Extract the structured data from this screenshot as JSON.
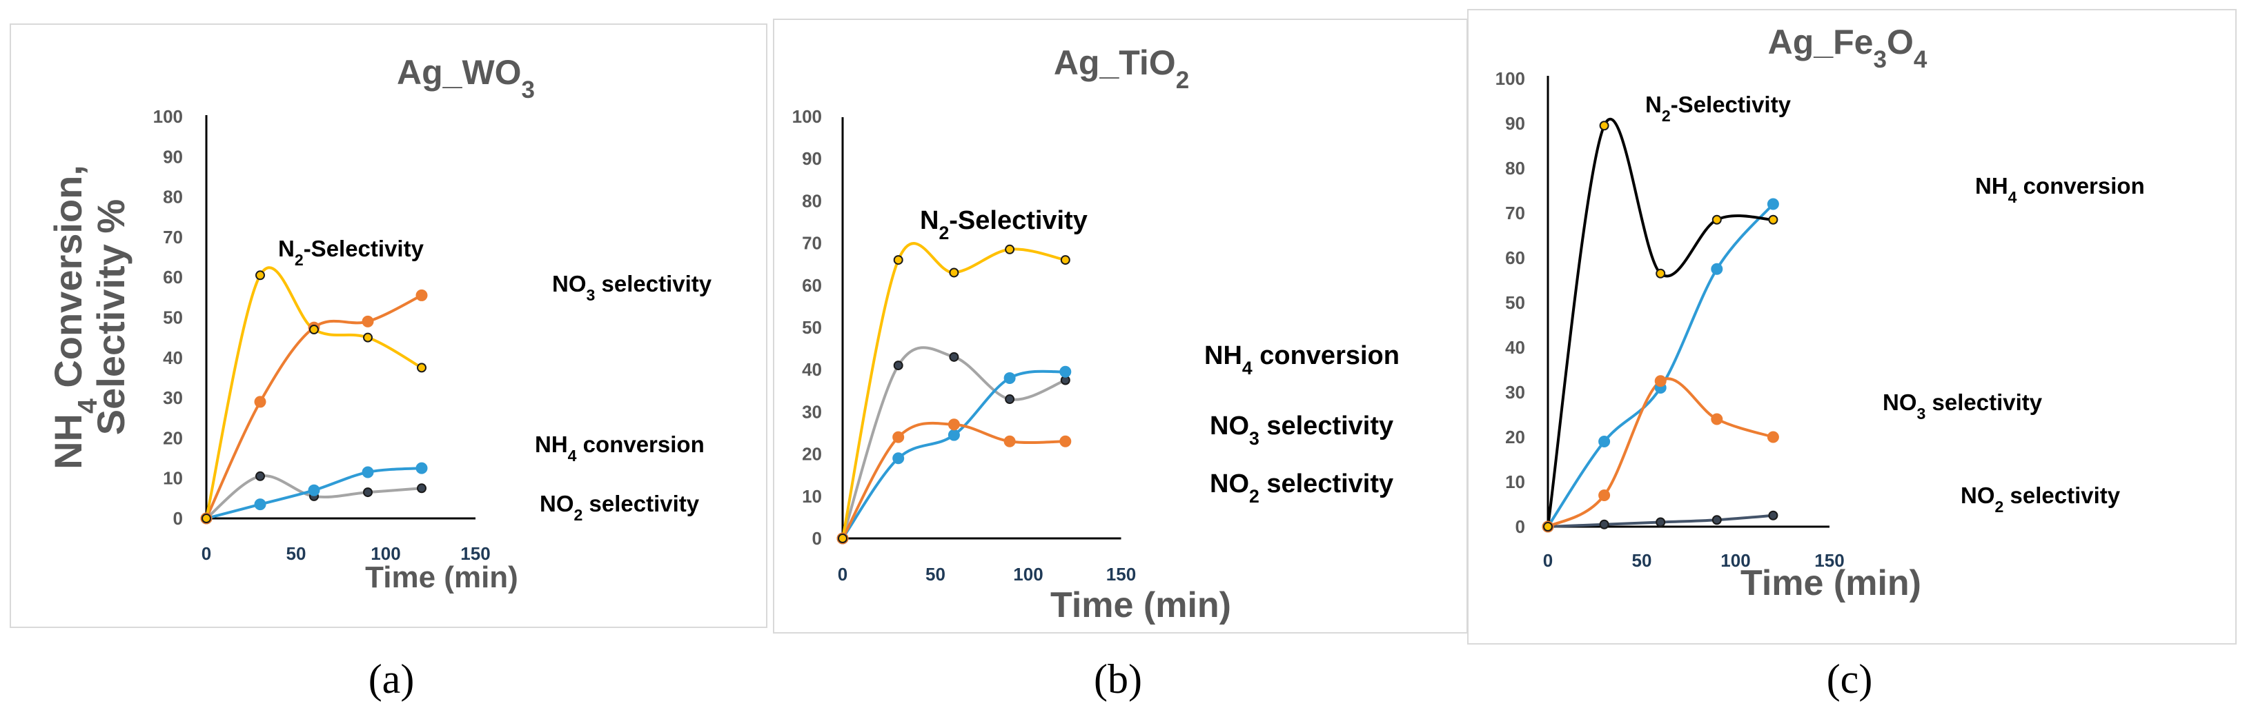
{
  "colors": {
    "n2": "#ffc000",
    "no3": "#ed7d31",
    "nh4": "#2e9bd6",
    "no2": "#a5a5a5",
    "n2_fe": "#000000",
    "no2_fe": "#44546a",
    "no2_marker": "#3a4452"
  },
  "chart_data": [
    {
      "type": "line",
      "title": "Ag_WO3",
      "title_parts": {
        "base": "Ag_WO",
        "sub": "3"
      },
      "panel_label": "(a)",
      "xlabel": "Time  (min)",
      "ylabel": "NH4 Conversion, Selectivity %",
      "ylabel_parts": {
        "line1_base": "NH",
        "line1_sub": "4",
        "line1_rest": " Conversion,",
        "line2": "Selectivity %"
      },
      "xlim": [
        0,
        150
      ],
      "ylim": [
        0,
        100
      ],
      "xticks": [
        0,
        50,
        100,
        150
      ],
      "yticks": [
        0,
        10,
        20,
        30,
        40,
        50,
        60,
        70,
        80,
        90,
        100
      ],
      "series": [
        {
          "key": "n2",
          "name": "N2-Selectivity",
          "label_parts": {
            "base": "N",
            "sub": "2",
            "rest": "-Selectivity"
          },
          "x": [
            0,
            30,
            60,
            90,
            120
          ],
          "values": [
            0,
            60.5,
            47,
            45,
            37.5
          ]
        },
        {
          "key": "no3",
          "name": "NO3 selectivity",
          "label_parts": {
            "base": "NO",
            "sub": "3",
            "rest": " selectivity"
          },
          "x": [
            0,
            30,
            60,
            90,
            120
          ],
          "values": [
            0,
            29,
            47.5,
            49,
            55.5
          ]
        },
        {
          "key": "nh4",
          "name": "NH4 conversion",
          "label_parts": {
            "base": "NH",
            "sub": "4",
            "rest": " conversion"
          },
          "x": [
            0,
            30,
            60,
            90,
            120
          ],
          "values": [
            0,
            3.5,
            7,
            11.5,
            12.5
          ]
        },
        {
          "key": "no2",
          "name": "NO2 selectivity",
          "label_parts": {
            "base": "NO",
            "sub": "2",
            "rest": " selectivity"
          },
          "x": [
            0,
            30,
            60,
            90,
            120
          ],
          "values": [
            0,
            10.5,
            5.5,
            6.5,
            7.5
          ]
        }
      ]
    },
    {
      "type": "line",
      "title": "Ag_TiO2",
      "title_parts": {
        "base": "Ag_TiO",
        "sub": "2"
      },
      "panel_label": "(b)",
      "xlabel": "Time  (min)",
      "xlim": [
        0,
        150
      ],
      "ylim": [
        0,
        100
      ],
      "xticks": [
        0,
        50,
        100,
        150
      ],
      "yticks": [
        0,
        10,
        20,
        30,
        40,
        50,
        60,
        70,
        80,
        90,
        100
      ],
      "series": [
        {
          "key": "n2",
          "name": "N2-Selectivity",
          "label_parts": {
            "base": "N",
            "sub": "2",
            "rest": "-Selectivity"
          },
          "x": [
            0,
            30,
            60,
            90,
            120
          ],
          "values": [
            0,
            66,
            63,
            68.5,
            66
          ]
        },
        {
          "key": "no3",
          "name": "NO3 selectivity",
          "label_parts": {
            "base": "NO",
            "sub": "3",
            "rest": " selectivity"
          },
          "x": [
            0,
            30,
            60,
            90,
            120
          ],
          "values": [
            0,
            24,
            27,
            23,
            23
          ]
        },
        {
          "key": "nh4",
          "name": "NH4 conversion",
          "label_parts": {
            "base": "NH",
            "sub": "4",
            "rest": " conversion"
          },
          "x": [
            0,
            30,
            60,
            90,
            120
          ],
          "values": [
            0,
            19,
            24.5,
            38,
            39.5
          ]
        },
        {
          "key": "no2",
          "name": "NO2 selectivity",
          "label_parts": {
            "base": "NO",
            "sub": "2",
            "rest": " selectivity"
          },
          "x": [
            0,
            30,
            60,
            90,
            120
          ],
          "values": [
            0,
            41,
            43,
            33,
            37.5
          ]
        }
      ]
    },
    {
      "type": "line",
      "title": "Ag_Fe3O4",
      "title_parts": {
        "base": "Ag_Fe",
        "sub": "3",
        "mid": "O",
        "sub2": "4"
      },
      "panel_label": "(c)",
      "xlabel": "Time  (min)",
      "xlim": [
        0,
        150
      ],
      "ylim": [
        0,
        100
      ],
      "xticks": [
        0,
        50,
        100,
        150
      ],
      "yticks": [
        0,
        10,
        20,
        30,
        40,
        50,
        60,
        70,
        80,
        90,
        100
      ],
      "series": [
        {
          "key": "n2",
          "name": "N2-Selectivity",
          "label_parts": {
            "base": "N",
            "sub": "2",
            "rest": "-Selectivity"
          },
          "x": [
            0,
            30,
            60,
            90,
            120
          ],
          "values": [
            0,
            89.5,
            56.5,
            68.5,
            68.5
          ]
        },
        {
          "key": "nh4",
          "name": "NH4 conversion",
          "label_parts": {
            "base": "NH",
            "sub": "4",
            "rest": " conversion"
          },
          "x": [
            0,
            30,
            60,
            90,
            120
          ],
          "values": [
            0,
            19,
            31,
            57.5,
            72
          ]
        },
        {
          "key": "no3",
          "name": "NO3 selectivity",
          "label_parts": {
            "base": "NO",
            "sub": "3",
            "rest": " selectivity"
          },
          "x": [
            0,
            30,
            60,
            90,
            120
          ],
          "values": [
            0,
            7,
            32.5,
            24,
            20
          ]
        },
        {
          "key": "no2",
          "name": "NO2 selectivity",
          "label_parts": {
            "base": "NO",
            "sub": "2",
            "rest": " selectivity"
          },
          "x": [
            0,
            30,
            60,
            90,
            120
          ],
          "values": [
            0,
            0.5,
            1,
            1.5,
            2.5
          ]
        }
      ]
    }
  ]
}
